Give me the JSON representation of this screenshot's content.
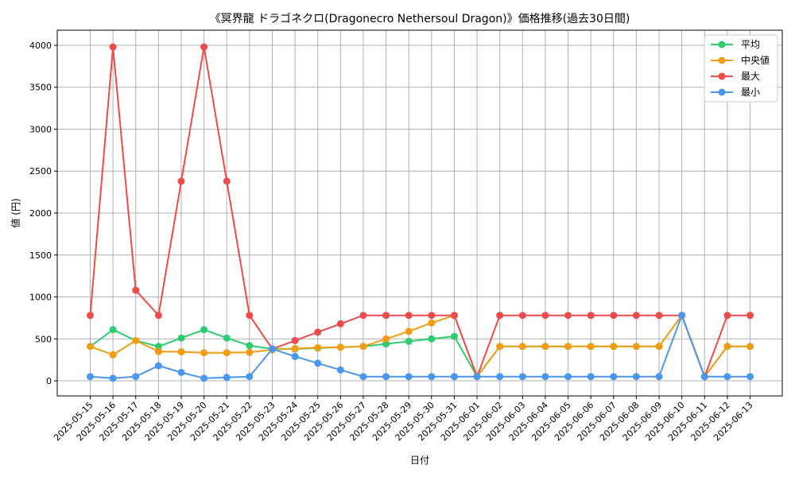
{
  "chart_data": {
    "type": "line",
    "title": "《冥界龍 ドラゴネクロ(Dragonecro Nethersoul Dragon)》価格推移(過去30日間)",
    "xlabel": "日付",
    "ylabel": "値 (円)",
    "ylim": [
      -180,
      4180
    ],
    "yticks": [
      0,
      500,
      1000,
      1500,
      2000,
      2500,
      3000,
      3500,
      4000
    ],
    "grid": true,
    "legend_position": "top-right",
    "categories": [
      "2025-05-15",
      "2025-05-16",
      "2025-05-17",
      "2025-05-18",
      "2025-05-19",
      "2025-05-20",
      "2025-05-21",
      "2025-05-22",
      "2025-05-23",
      "2025-05-24",
      "2025-05-25",
      "2025-05-26",
      "2025-05-27",
      "2025-05-28",
      "2025-05-29",
      "2025-05-30",
      "2025-05-31",
      "2025-06-01",
      "2025-06-02",
      "2025-06-03",
      "2025-06-04",
      "2025-06-05",
      "2025-06-06",
      "2025-06-07",
      "2025-06-08",
      "2025-06-09",
      "2025-06-10",
      "2025-06-11",
      "2025-06-12",
      "2025-06-13"
    ],
    "series": [
      {
        "name": "平均",
        "color": "#2ecc71",
        "values": [
          410,
          610,
          480,
          410,
          510,
          610,
          510,
          420,
          380,
          380,
          390,
          400,
          410,
          440,
          470,
          500,
          530,
          50,
          410,
          410,
          410,
          410,
          410,
          410,
          410,
          410,
          780,
          50,
          410,
          410
        ]
      },
      {
        "name": "中央値",
        "color": "#f39c12",
        "values": [
          410,
          310,
          480,
          350,
          345,
          335,
          335,
          340,
          370,
          385,
          395,
          400,
          410,
          500,
          590,
          690,
          780,
          50,
          410,
          410,
          410,
          410,
          410,
          410,
          410,
          410,
          780,
          50,
          410,
          410
        ]
      },
      {
        "name": "最大",
        "color": "#ef4b4b",
        "values": [
          780,
          3980,
          1080,
          780,
          2380,
          3980,
          2380,
          780,
          380,
          480,
          580,
          680,
          780,
          780,
          780,
          780,
          780,
          50,
          780,
          780,
          780,
          780,
          780,
          780,
          780,
          780,
          780,
          50,
          780,
          780
        ]
      },
      {
        "name": "最小",
        "color": "#4a97f0",
        "values": [
          50,
          30,
          50,
          180,
          100,
          30,
          40,
          50,
          380,
          290,
          210,
          130,
          50,
          50,
          50,
          50,
          50,
          50,
          50,
          50,
          50,
          50,
          50,
          50,
          50,
          50,
          780,
          50,
          50,
          50
        ]
      }
    ]
  }
}
